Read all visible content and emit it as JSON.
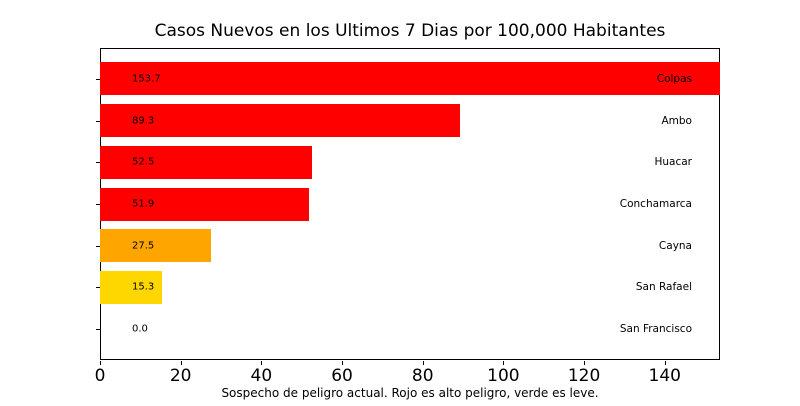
{
  "chart_data": {
    "type": "bar",
    "orientation": "horizontal",
    "title": "Casos Nuevos en los Ultimos 7 Dias por 100,000 Habitantes",
    "xlabel": "Sospecho de peligro actual. Rojo es alto peligro, verde es leve.",
    "ylabel": "",
    "categories": [
      "Colpas",
      "Ambo",
      "Huacar",
      "Conchamarca",
      "Cayna",
      "San Rafael",
      "San Francisco"
    ],
    "values": [
      153.7,
      89.3,
      52.5,
      51.9,
      27.5,
      15.3,
      0.0
    ],
    "value_labels": [
      "153.7",
      "89.3",
      "52.5",
      "51.9",
      "27.5",
      "15.3",
      "0.0"
    ],
    "bar_colors": [
      "#ff0000",
      "#ff0000",
      "#ff0000",
      "#ff0000",
      "#ffa500",
      "#ffd700",
      "#ffd700"
    ],
    "xlim": [
      0,
      153.7
    ],
    "xticks": [
      0,
      20,
      40,
      60,
      80,
      100,
      120,
      140
    ],
    "xtick_labels": [
      "0",
      "20",
      "40",
      "60",
      "80",
      "100",
      "120",
      "140"
    ],
    "grid": false,
    "legend": "none",
    "colors_meaning": {
      "high_danger": "#ff0000",
      "medium_danger": "#ffa500",
      "low_danger": "#ffd700"
    }
  }
}
